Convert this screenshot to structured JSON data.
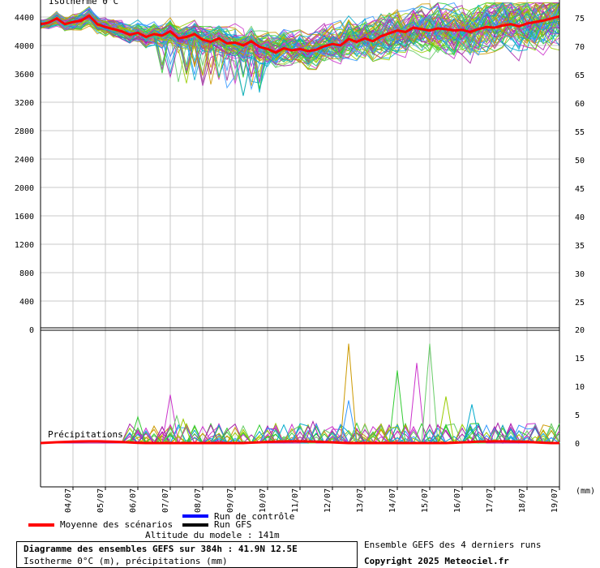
{
  "chart_data": {
    "type": "line",
    "panels": [
      {
        "name": "Isotherme 0°C",
        "label": "Isotherme 0°C",
        "y_left_ticks": [
          0,
          400,
          800,
          1200,
          1600,
          2000,
          2400,
          2800,
          3200,
          3600,
          4000,
          4400
        ],
        "y_right_ticks": [
          25,
          30,
          35,
          40,
          45,
          50,
          55,
          60,
          65,
          70,
          75
        ],
        "ylim": [
          0,
          4600
        ],
        "grid": true,
        "mean_series": {
          "name": "Moyenne des scénarios",
          "x": [
            0,
            0.25,
            0.5,
            0.75,
            1,
            1.25,
            1.5,
            1.75,
            2,
            2.25,
            2.5,
            2.75,
            3,
            3.25,
            3.5,
            3.75,
            4,
            4.25,
            4.5,
            4.75,
            5,
            5.25,
            5.5,
            5.75,
            6,
            6.25,
            6.5,
            6.75,
            7,
            7.25,
            7.5,
            7.75,
            8,
            8.25,
            8.5,
            8.75,
            9,
            9.25,
            9.5,
            9.75,
            10,
            10.25,
            10.5,
            10.75,
            11,
            11.25,
            11.5,
            11.75,
            12,
            12.25,
            12.5,
            12.75,
            13,
            13.25,
            13.5,
            13.75,
            14,
            14.25,
            14.5,
            14.75,
            15,
            15.25,
            15.5,
            15.75,
            16
          ],
          "values": [
            4300,
            4320,
            4380,
            4300,
            4330,
            4350,
            4420,
            4300,
            4260,
            4230,
            4200,
            4150,
            4180,
            4120,
            4160,
            4140,
            4200,
            4100,
            4120,
            4160,
            4080,
            4050,
            4100,
            4030,
            4040,
            4000,
            4060,
            3980,
            3950,
            3900,
            3960,
            3930,
            3950,
            3920,
            3940,
            3990,
            4020,
            4000,
            4090,
            4050,
            4100,
            4060,
            4130,
            4170,
            4210,
            4190,
            4250,
            4230,
            4210,
            4240,
            4230,
            4210,
            4220,
            4190,
            4230,
            4260,
            4250,
            4280,
            4300,
            4270,
            4310,
            4330,
            4350,
            4380,
            4410
          ]
        }
      },
      {
        "name": "Précipitations",
        "label": "Précipitations",
        "y_right_ticks": [
          0,
          5,
          10,
          15,
          20
        ],
        "unit": "(mm)",
        "ylim": [
          -7.5,
          20
        ],
        "grid": false,
        "spike_values": [
          4.6,
          8.5,
          4.8,
          4.2,
          3.2,
          3.8,
          17.5,
          7.5,
          12.8,
          14.1,
          17.5,
          8.2,
          6.8,
          3.5
        ]
      }
    ],
    "x_ticks": [
      "04/07",
      "05/07",
      "06/07",
      "07/07",
      "08/07",
      "09/07",
      "10/07",
      "11/07",
      "12/07",
      "13/07",
      "14/07",
      "15/07",
      "16/07",
      "17/07",
      "18/07",
      "19/07"
    ]
  },
  "legend": {
    "control": "Run de contrôle",
    "gfs": "Run GFS",
    "mean": "Moyenne des scénarios",
    "altitude": "Altitude du modele : 141m",
    "colors": {
      "control": "#0000ff",
      "gfs": "#000000",
      "mean": "#ff0000"
    }
  },
  "footer": {
    "title": "Diagramme des ensembles GEFS sur 384h : 41.9N 12.5E",
    "subtitle": "Isotherme 0°C (m), précipitations (mm)",
    "runs": "Ensemble GEFS des 4 derniers runs",
    "copyright": "Copyright 2025 Meteociel.fr"
  },
  "colors": {
    "mean": "#ff0000",
    "member_palette": [
      "#33cc33",
      "#99cc00",
      "#cc9900",
      "#cc33cc",
      "#00aacc",
      "#3399ff",
      "#66cc66",
      "#aa22aa"
    ]
  }
}
